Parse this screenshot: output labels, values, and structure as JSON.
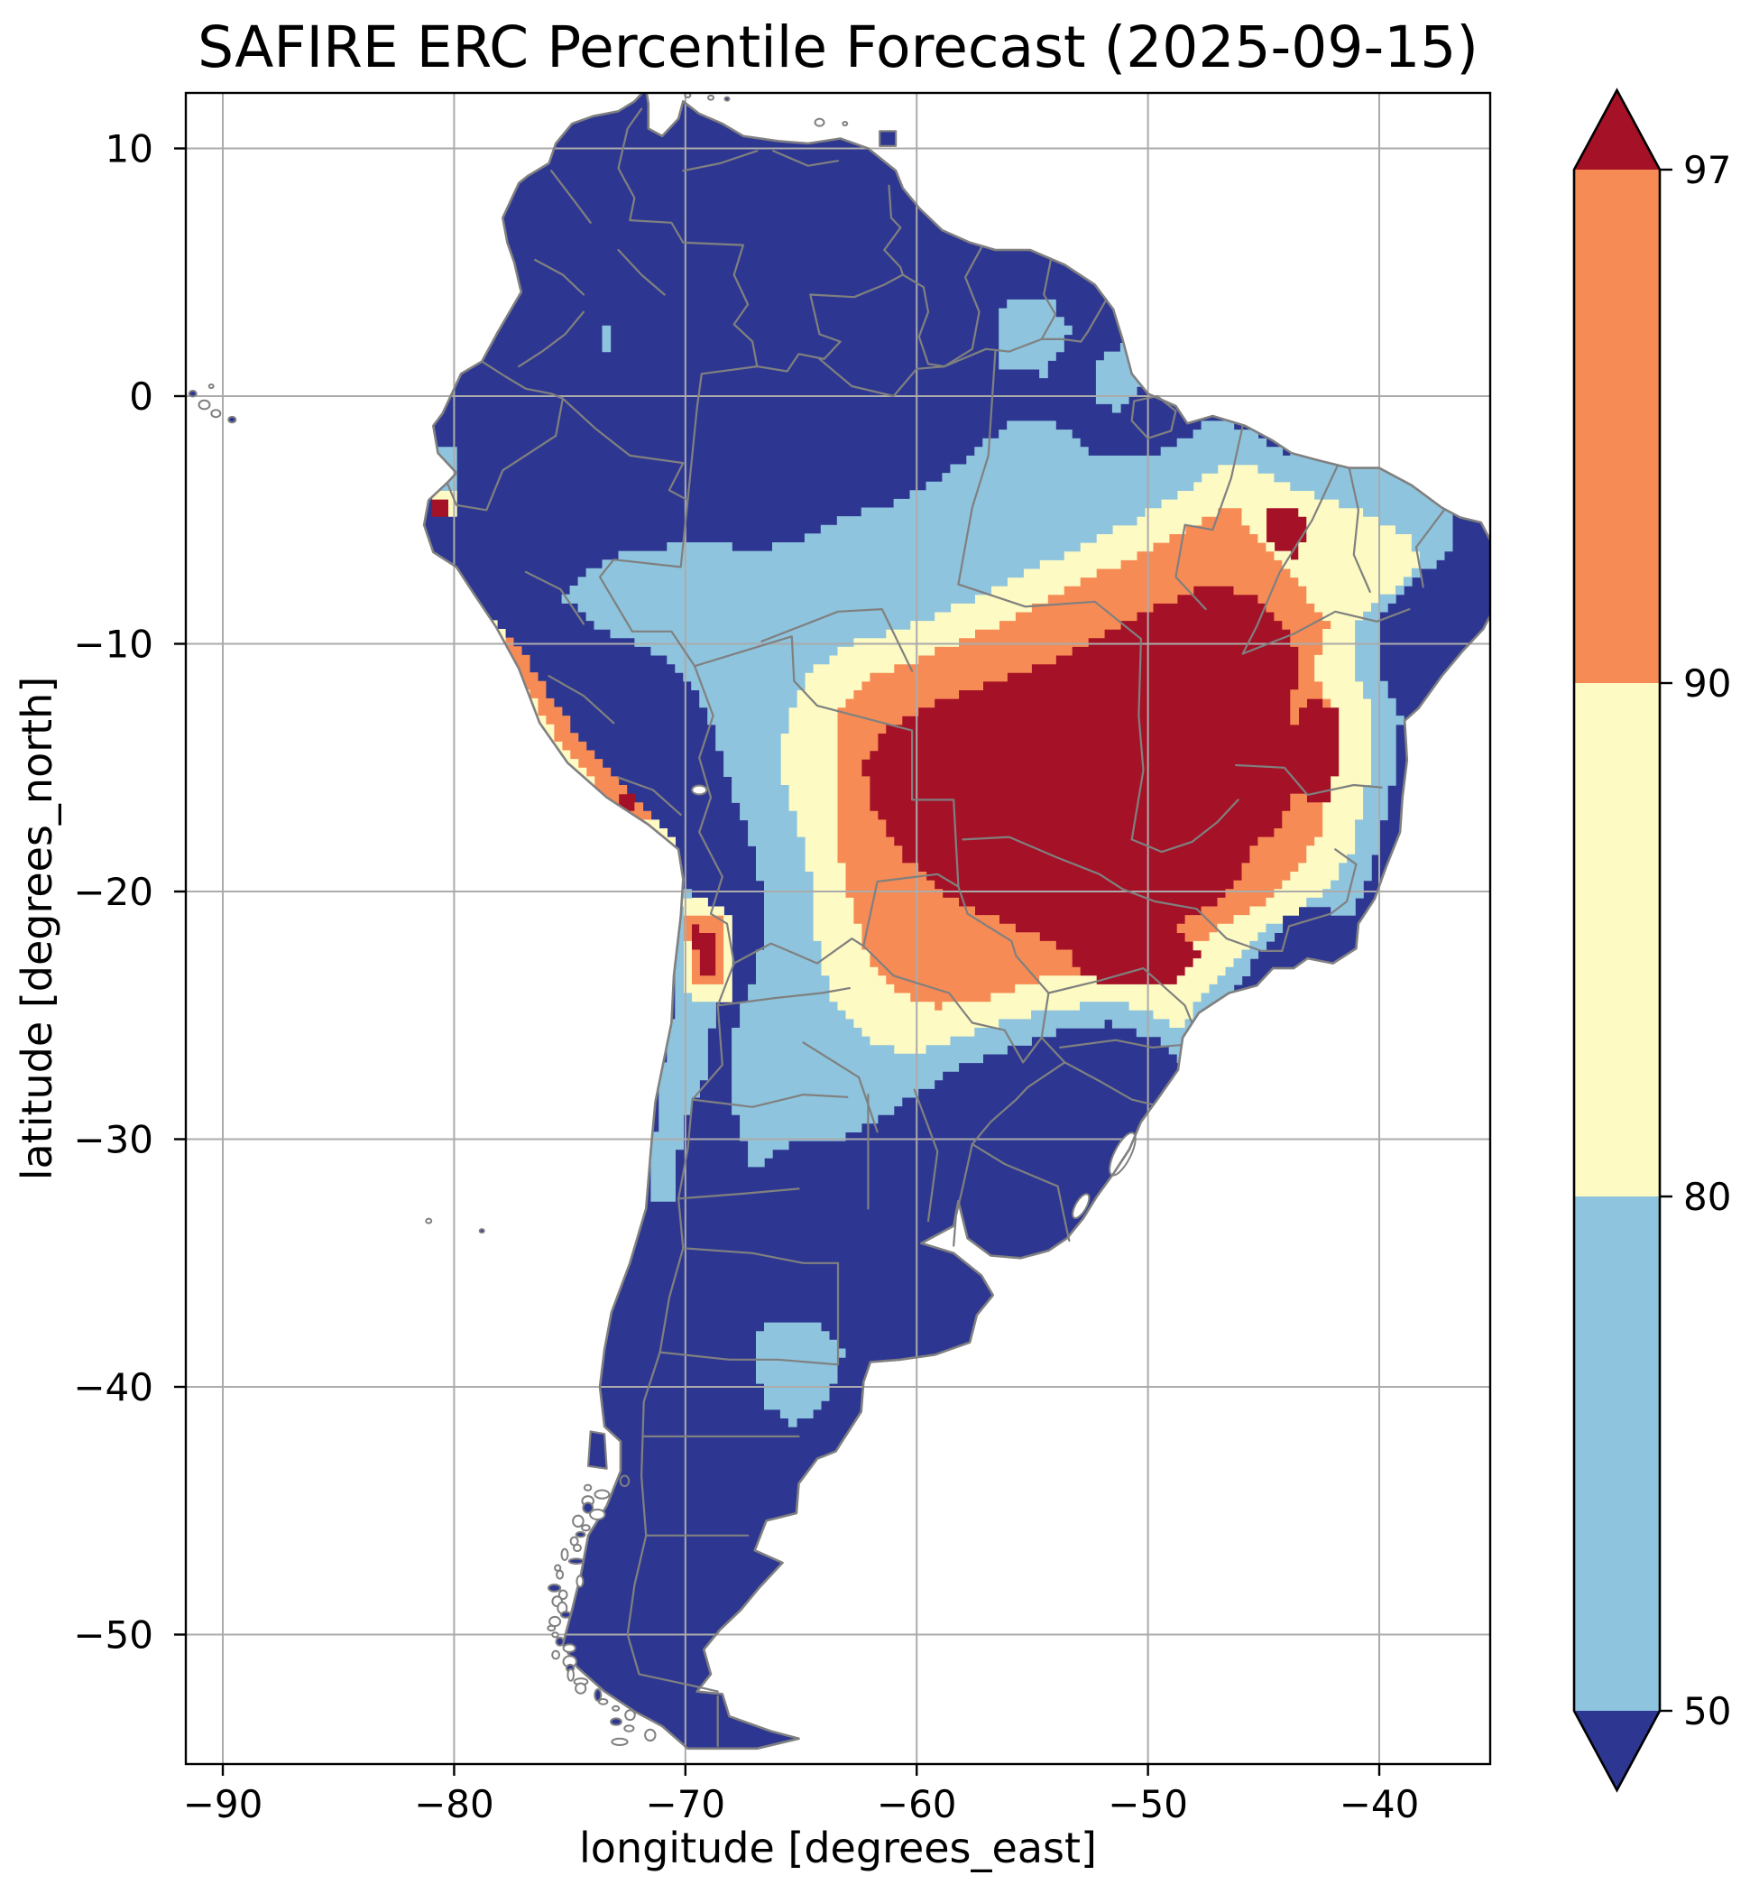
{
  "figure": {
    "title": "SAFIRE ERC Percentile Forecast (2025-09-15)",
    "xlabel": "longitude [degrees_east]",
    "ylabel": "latitude [degrees_north]"
  },
  "axes": {
    "xtick_labels": [
      "−90",
      "−80",
      "−70",
      "−60",
      "−50",
      "−40"
    ],
    "ytick_labels": [
      "10",
      "0",
      "−10",
      "−20",
      "−30",
      "−40",
      "−50"
    ]
  },
  "colorbar": {
    "tick_labels": [
      "97",
      "90",
      "80",
      "50"
    ],
    "extend": "both"
  },
  "colors": {
    "below_50": "#2d3791",
    "pct_50_80": "#8ec4dd",
    "pct_80_90": "#fdfac3",
    "pct_90_97": "#f78b55",
    "above_97": "#a51126",
    "boundaries": "#808080",
    "gridlines": "#ababab",
    "spine": "#000000",
    "ocean": "#ffffff"
  },
  "chart_data": {
    "type": "heatmap",
    "title": "SAFIRE ERC Percentile Forecast (2025-09-15)",
    "xlabel": "longitude [degrees_east]",
    "ylabel": "latitude [degrees_north]",
    "xticks": [
      -90,
      -80,
      -70,
      -60,
      -50,
      -40
    ],
    "yticks": [
      10,
      0,
      -10,
      -20,
      -30,
      -40,
      -50
    ],
    "xlim": [
      -91.6,
      -35.2
    ],
    "ylim": [
      -55.2,
      12.2
    ],
    "grid": true,
    "legend_position": "right-colorbar",
    "colorbar_levels": [
      50,
      80,
      90,
      97
    ],
    "colorbar_segment_colors": [
      "#8ec4dd",
      "#fdfac3",
      "#f78b55"
    ],
    "colorbar_extend_colors": {
      "under": "#2d3791",
      "over": "#a51126"
    },
    "colorbar_tick_labels": [
      "97",
      "90",
      "80",
      "50"
    ],
    "region_shown": "South America",
    "highest_category_location": "central Brazil / eastern Bolivia core (~58W–44W, 10S–22S) above 97th percentile, ringed by 90–97, 80–90 and 50–80 bands; most of the rest of the continent below 50th percentile"
  }
}
